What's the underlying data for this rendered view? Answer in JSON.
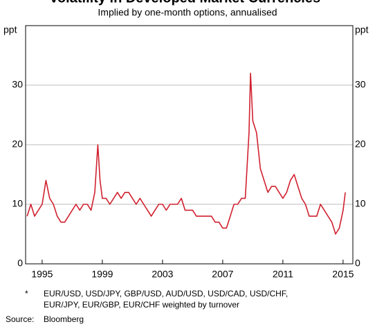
{
  "chart_data": {
    "type": "line",
    "title": "Volatility in Developed Market Currencies*",
    "subtitle": "Implied by one-month options, annualised",
    "y_unit": "ppt",
    "footnote_marker": "*",
    "footnote": [
      "EUR/USD, USD/JPY, GBP/USD, AUD/USD, USD/CAD, USD/CHF,",
      "EUR/JPY, EUR/GBP, EUR/CHF weighted by turnover"
    ],
    "source_label": "Source:",
    "source": "Bloomberg",
    "xlim": [
      1993.9,
      2015.65
    ],
    "xticks": [
      1995,
      1999,
      2003,
      2007,
      2011,
      2015
    ],
    "ylim": [
      0,
      40
    ],
    "yticks": [
      0,
      10,
      20,
      30
    ],
    "grid": true,
    "x": [
      1994.0,
      1994.25,
      1994.5,
      1994.75,
      1995.0,
      1995.25,
      1995.5,
      1995.75,
      1996.0,
      1996.25,
      1996.5,
      1996.75,
      1997.0,
      1997.25,
      1997.5,
      1997.75,
      1998.0,
      1998.25,
      1998.5,
      1998.7,
      1998.85,
      1999.0,
      1999.25,
      1999.5,
      1999.75,
      2000.0,
      2000.25,
      2000.5,
      2000.75,
      2001.0,
      2001.25,
      2001.5,
      2001.75,
      2002.0,
      2002.25,
      2002.5,
      2002.75,
      2003.0,
      2003.25,
      2003.5,
      2003.75,
      2004.0,
      2004.25,
      2004.5,
      2004.75,
      2005.0,
      2005.25,
      2005.5,
      2005.75,
      2006.0,
      2006.25,
      2006.5,
      2006.75,
      2007.0,
      2007.25,
      2007.5,
      2007.75,
      2008.0,
      2008.25,
      2008.5,
      2008.75,
      2008.85,
      2009.0,
      2009.25,
      2009.5,
      2009.75,
      2010.0,
      2010.25,
      2010.5,
      2010.75,
      2011.0,
      2011.25,
      2011.5,
      2011.75,
      2012.0,
      2012.25,
      2012.5,
      2012.75,
      2013.0,
      2013.25,
      2013.5,
      2013.75,
      2014.0,
      2014.25,
      2014.5,
      2014.75,
      2015.0,
      2015.15
    ],
    "series": [
      {
        "name": "Volatility",
        "color": "#d0202e",
        "values": [
          8,
          10,
          8,
          9,
          10,
          14,
          11,
          10,
          8,
          7,
          7,
          8,
          9,
          10,
          9,
          10,
          10,
          9,
          12,
          20,
          14,
          11,
          11,
          10,
          11,
          12,
          11,
          12,
          12,
          11,
          10,
          11,
          10,
          9,
          8,
          9,
          10,
          10,
          9,
          10,
          10,
          10,
          11,
          9,
          9,
          9,
          8,
          8,
          8,
          8,
          8,
          7,
          7,
          6,
          6,
          8,
          10,
          10,
          11,
          11,
          22,
          32,
          24,
          22,
          16,
          14,
          12,
          13,
          13,
          12,
          11,
          12,
          14,
          15,
          13,
          11,
          10,
          8,
          8,
          8,
          10,
          9,
          8,
          7,
          5,
          6,
          9,
          12
        ]
      }
    ]
  }
}
